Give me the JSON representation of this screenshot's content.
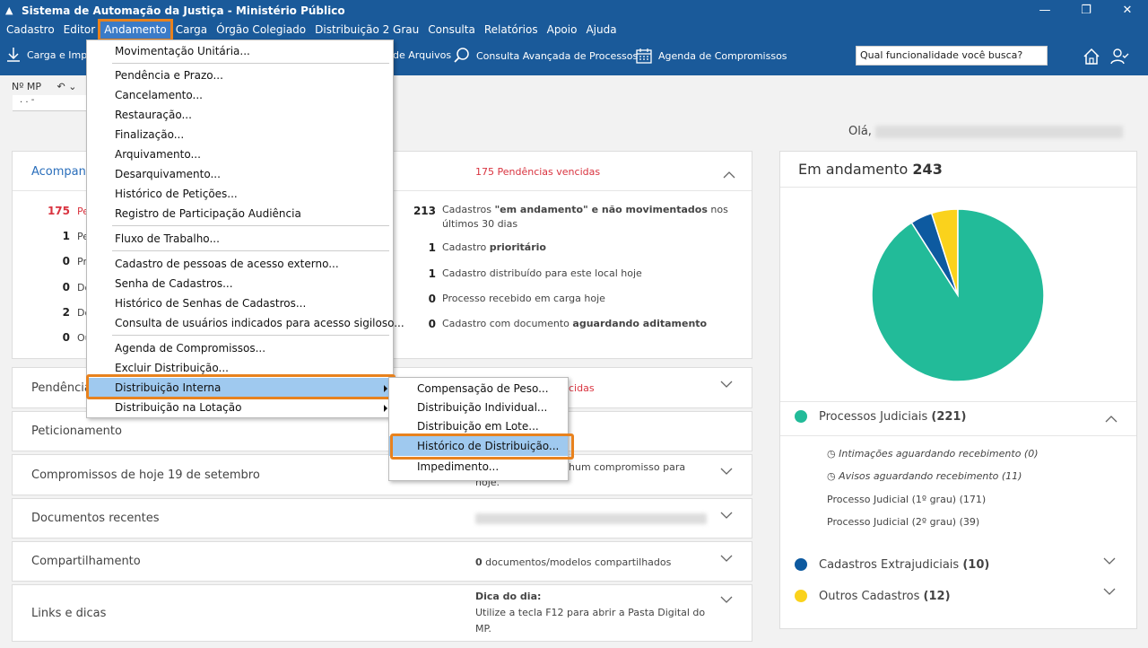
{
  "window": {
    "title": "Sistema de Automação da Justiça - Ministério Público"
  },
  "menubar": [
    "Cadastro",
    "Editor",
    "Andamento",
    "Carga",
    "Órgão Colegiado",
    "Distribuição 2 Grau",
    "Consulta",
    "Relatórios",
    "Apoio",
    "Ajuda"
  ],
  "toolbar": {
    "carga": "Carga e Impo",
    "arquivos": "de Arquivos",
    "consulta": "Consulta Avançada de Processos",
    "agenda": "Agenda de Compromissos",
    "search_placeholder": "Qual funcionalidade você busca?"
  },
  "mp_label": "Nº MP",
  "mp_value": ". . -",
  "greeting": "Olá,",
  "acompanhamento": {
    "title": "Acompan",
    "vencidas": "175 Pendências vencidas",
    "left_counts": [
      {
        "n": "175",
        "t": "Pe"
      },
      {
        "n": "1",
        "t": "Pe"
      },
      {
        "n": "0",
        "t": "Pr"
      },
      {
        "n": "0",
        "t": "Do"
      },
      {
        "n": "2",
        "t": "Do"
      },
      {
        "n": "0",
        "t": "Ou"
      }
    ],
    "right_items": [
      {
        "n": "213",
        "pre": "Cadastros ",
        "bold": "\"em andamento\" e não movimentados",
        "post": " nos",
        "line2": "últimos 30 dias"
      },
      {
        "n": "1",
        "pre": "Cadastro ",
        "bold": "prioritário",
        "post": ""
      },
      {
        "n": "1",
        "pre": "Cadastro distribuído para este local hoje",
        "bold": "",
        "post": ""
      },
      {
        "n": "0",
        "pre": "Processo recebido em carga hoje",
        "bold": "",
        "post": ""
      },
      {
        "n": "0",
        "pre": "Cadastro com documento ",
        "bold": "aguardando aditamento",
        "post": ""
      }
    ]
  },
  "sections": {
    "pendencias": {
      "title": "Pendência",
      "right": "cidas"
    },
    "peticionamento": {
      "title": "Peticionamento"
    },
    "compromissos": {
      "title": "Compromissos de hoje 19 de setembro",
      "right1": "hum compromisso para",
      "right2": "hoje."
    },
    "documentos": {
      "title": "Documentos recentes"
    },
    "compartilhamento": {
      "title": "Compartilhamento",
      "count": "0",
      "text": " documentos/modelos compartilhados"
    },
    "links": {
      "title": "Links e dicas",
      "dica_title": "Dica do dia:",
      "dica1": "Utilize a tecla F12 para abrir a Pasta Digital do",
      "dica2": "MP."
    }
  },
  "andamento_menu": [
    "Movimentação Unitária...",
    "Pendência e Prazo...",
    "Cancelamento...",
    "Restauração...",
    "Finalização...",
    "Arquivamento...",
    "Desarquivamento...",
    "Histórico de Petições...",
    "Registro de Participação Audiência",
    "Fluxo de Trabalho...",
    "Cadastro de pessoas de acesso externo...",
    "Senha de Cadastros...",
    "Histórico de Senhas de Cadastros...",
    "Consulta de usuários indicados para acesso sigiloso...",
    "Agenda de Compromissos...",
    "Excluir Distribuição...",
    "Distribuição Interna",
    "Distribuição na Lotação"
  ],
  "submenu": [
    "Compensação de Peso...",
    "Distribuição Individual...",
    "Distribuição em Lote...",
    "Histórico de Distribuição...",
    "Impedimento..."
  ],
  "em_andamento": {
    "label": "Em andamento",
    "total": "243",
    "colors": {
      "judiciais": "#22bb99",
      "extrajudiciais": "#0d5aa0",
      "outros": "#fad21c"
    },
    "judiciais": {
      "label": "Processos Judiciais",
      "count": "(221)",
      "value": 221
    },
    "sub": [
      "Intimações aguardando recebimento (0)",
      "Avisos aguardando recebimento (11)",
      "Processo Judicial (1º grau) (171)",
      "Processo Judicial (2º grau) (39)"
    ],
    "extrajudiciais": {
      "label": "Cadastros Extrajudiciais",
      "count": "(10)",
      "value": 10
    },
    "outros": {
      "label": "Outros Cadastros",
      "count": "(12)",
      "value": 12
    }
  }
}
